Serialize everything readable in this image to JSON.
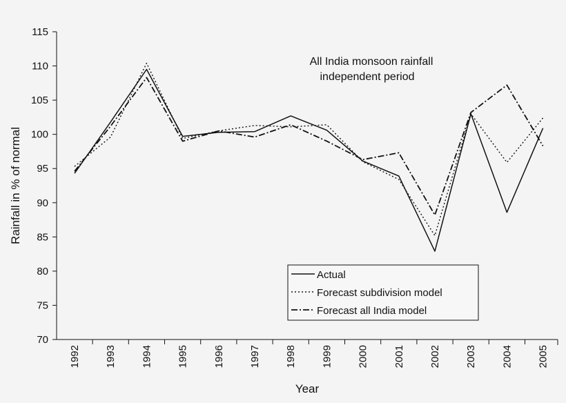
{
  "chart_data": {
    "type": "line",
    "title": "",
    "annotation": [
      "All India monsoon rainfall",
      "independent period"
    ],
    "xlabel": "Year",
    "ylabel": "Rainfall in % of normal",
    "categories": [
      "1992",
      "1993",
      "1994",
      "1995",
      "1996",
      "1997",
      "1998",
      "1999",
      "2000",
      "2001",
      "2002",
      "2003",
      "2004",
      "2005"
    ],
    "ylim": [
      70,
      115
    ],
    "yticks": [
      70,
      75,
      80,
      85,
      90,
      95,
      100,
      105,
      110,
      115
    ],
    "grid": false,
    "legend_position": "bottom-right",
    "series": [
      {
        "name": "Actual",
        "style": "solid",
        "values": [
          94.3,
          101.8,
          109.5,
          99.7,
          100.3,
          100.4,
          102.7,
          100.6,
          96.1,
          93.9,
          82.9,
          103.0,
          88.6,
          100.9
        ]
      },
      {
        "name": "Forecast subdivision model",
        "style": "dotted",
        "values": [
          95.3,
          99.6,
          110.4,
          99.4,
          100.5,
          101.3,
          101.1,
          101.4,
          96.0,
          93.4,
          85.2,
          103.0,
          95.9,
          102.4
        ]
      },
      {
        "name": "Forecast all India model",
        "style": "dashdot",
        "values": [
          94.6,
          101.2,
          108.3,
          99.0,
          100.5,
          99.6,
          101.4,
          99.0,
          96.3,
          97.3,
          88.2,
          103.2,
          107.2,
          98.3
        ]
      }
    ]
  },
  "colors": {
    "line": "#111111",
    "background": "#f4f4f4",
    "legend_bg": "#f7f7f7"
  }
}
